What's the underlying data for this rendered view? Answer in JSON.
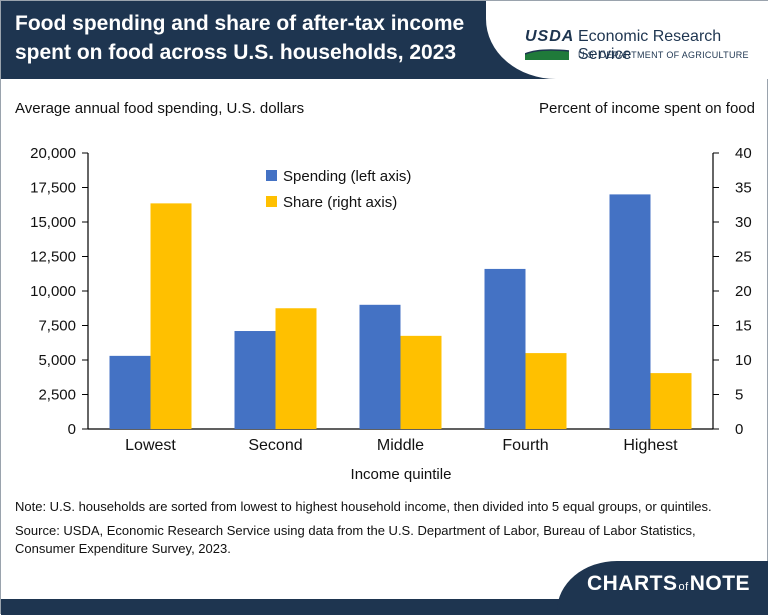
{
  "header": {
    "title": "Food spending and share of after-tax income spent on food across U.S. households, 2023",
    "agency_logo_text": "USDA",
    "agency_name": "Economic Research Service",
    "department": "U.S. DEPARTMENT OF AGRICULTURE"
  },
  "chart_data": {
    "type": "bar",
    "title": "Food spending and share of after-tax income spent on food across U.S. households, 2023",
    "xlabel": "Income quintile",
    "ylabel_left": "Average annual food spending, U.S. dollars",
    "ylabel_right": "Percent of income spent on food",
    "categories": [
      "Lowest",
      "Second",
      "Middle",
      "Fourth",
      "Highest"
    ],
    "series": [
      {
        "name": "Spending (left axis)",
        "axis": "left",
        "color": "#4472c4",
        "values": [
          5300,
          7100,
          9000,
          11600,
          17000
        ]
      },
      {
        "name": "Share (right axis)",
        "axis": "right",
        "color": "#ffc000",
        "values": [
          32.7,
          17.5,
          13.5,
          11.0,
          8.1
        ]
      }
    ],
    "ylim_left": [
      0,
      20000
    ],
    "ylim_right": [
      0,
      40
    ],
    "left_ticks": [
      "0",
      "2,500",
      "5,000",
      "7,500",
      "10,000",
      "12,500",
      "15,000",
      "17,500",
      "20,000"
    ],
    "right_ticks": [
      "0",
      "5",
      "10",
      "15",
      "20",
      "25",
      "30",
      "35",
      "40"
    ],
    "grid": false,
    "legend_placement": "top-center"
  },
  "notes": {
    "note": "Note: U.S. households are sorted from lowest to highest household income, then divided into 5 equal groups, or quintiles.",
    "source": "Source: USDA, Economic Research Service using data from the U.S. Department of Labor, Bureau of Labor Statistics, Consumer Expenditure Survey, 2023."
  },
  "footer": {
    "brand_left": "CHARTS",
    "brand_of": "of",
    "brand_right": "NOTE"
  }
}
